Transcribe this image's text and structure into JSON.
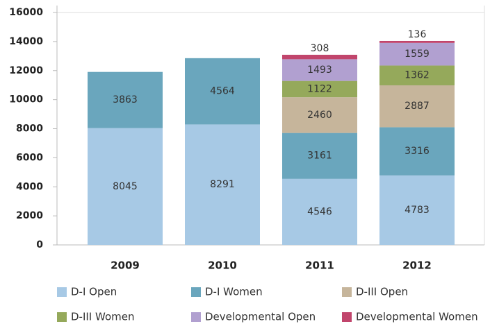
{
  "chart_data": {
    "type": "stacked_bar",
    "categories": [
      "2009",
      "2010",
      "2011",
      "2012"
    ],
    "series": [
      {
        "name": "D-I Open",
        "color": "#a7c9e5",
        "values": [
          8045,
          8291,
          4546,
          4783
        ]
      },
      {
        "name": "D-I Women",
        "color": "#6aa6bd",
        "values": [
          3863,
          4564,
          3161,
          3316
        ]
      },
      {
        "name": "D-III Open",
        "color": "#c6b59b",
        "values": [
          null,
          null,
          2460,
          2887
        ]
      },
      {
        "name": "D-III Women",
        "color": "#95a95b",
        "values": [
          null,
          null,
          1122,
          1362
        ]
      },
      {
        "name": "Developmental Open",
        "color": "#b1a0d0",
        "values": [
          null,
          null,
          1493,
          1559
        ]
      },
      {
        "name": "Developmental Women",
        "color": "#c1456c",
        "values": [
          null,
          null,
          308,
          136
        ]
      }
    ],
    "ylim": [
      0,
      16000
    ],
    "yticks": [
      0,
      2000,
      4000,
      6000,
      8000,
      10000,
      12000,
      14000,
      16000
    ],
    "legend": "bottom"
  }
}
